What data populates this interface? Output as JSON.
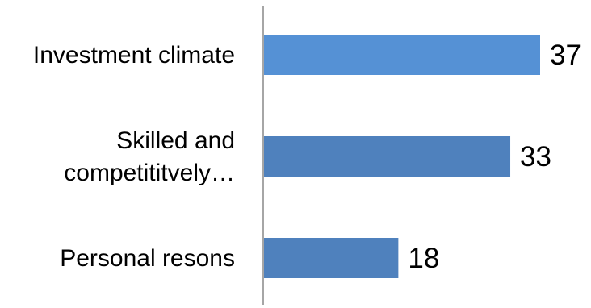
{
  "chart_data": {
    "type": "bar",
    "orientation": "horizontal",
    "categories": [
      [
        "Investment climate"
      ],
      [
        "Skilled and",
        "competititvely…"
      ],
      [
        "Personal resons"
      ]
    ],
    "values": [
      37,
      33,
      18
    ],
    "data_labels": [
      "37",
      "33",
      "18"
    ],
    "title": "",
    "xlabel": "",
    "ylabel": "",
    "xlim": [
      0,
      37
    ],
    "grid": false,
    "legend": "none",
    "colors": {
      "bar_fill": "#5591d5",
      "bar_fill_alt": "#4f81bd",
      "axis": "#888888",
      "text": "#000000"
    }
  }
}
